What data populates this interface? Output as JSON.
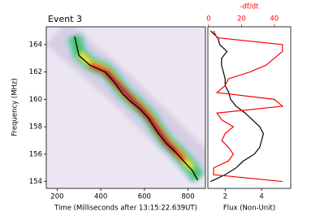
{
  "chart_data": [
    {
      "type": "spectrogram",
      "title": "Event 3",
      "x_label": "Time (Milliseconds after 13:15:22.639UT)",
      "y_label": "Frequency (MHz)",
      "xlim": [
        150,
        880
      ],
      "ylim": [
        153.5,
        165.3
      ],
      "xticks": [
        200,
        400,
        600,
        800
      ],
      "yticks": [
        154,
        156,
        158,
        160,
        162,
        164
      ],
      "series": [
        {
          "color": "#000000",
          "x": [
            280,
            300,
            350,
            420,
            460,
            500,
            540,
            580,
            620,
            660,
            700,
            740,
            780,
            820,
            845
          ],
          "values": [
            164.6,
            163.2,
            162.5,
            162.0,
            161.3,
            160.4,
            159.8,
            159.3,
            158.6,
            157.6,
            156.8,
            156.2,
            155.5,
            154.8,
            154.1
          ]
        }
      ]
    },
    {
      "type": "profile",
      "x_label": "Flux (Non-Unit)",
      "x2_label": "-df/dt",
      "xlim": [
        1.05,
        5.6
      ],
      "xticks": [
        2,
        4
      ],
      "x2lim": [
        -0.5,
        50
      ],
      "x2ticks": [
        0,
        20,
        40
      ],
      "ylim": [
        153.5,
        165.3
      ],
      "y": [
        154,
        154.5,
        155,
        155.5,
        156,
        156.5,
        157,
        157.5,
        158,
        158.5,
        159,
        159.5,
        160,
        160.5,
        161,
        161.5,
        162,
        162.5,
        163,
        163.5,
        164,
        164.5,
        165
      ],
      "series": [
        {
          "color": "#000000",
          "axis": "x",
          "values": [
            1.2,
            2.0,
            2.6,
            3.0,
            3.6,
            3.9,
            4.0,
            4.1,
            3.9,
            3.5,
            3.1,
            2.6,
            2.3,
            2.2,
            2.0,
            2.0,
            1.9,
            1.8,
            1.8,
            2.1,
            1.7,
            1.6,
            1.2
          ]
        },
        {
          "color": "#ff0000",
          "axis": "x2",
          "values": [
            45,
            3,
            3,
            12,
            15,
            12,
            8,
            10,
            15,
            8,
            5,
            45,
            40,
            5,
            10,
            12,
            25,
            35,
            40,
            45,
            45,
            5,
            3
          ]
        }
      ]
    }
  ]
}
